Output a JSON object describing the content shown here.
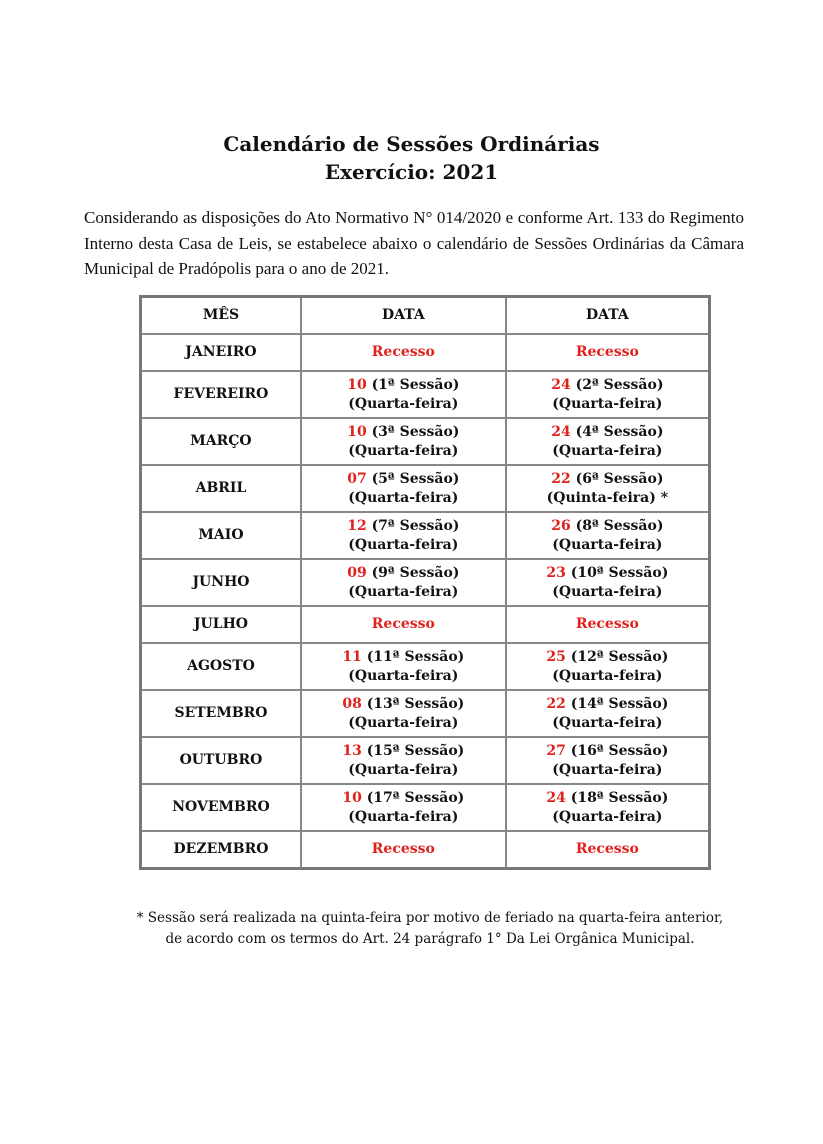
{
  "title": "Calendário de Sessões Ordinárias",
  "subtitle": "Exercício: 2021",
  "intro": "Considerando as disposições do Ato Normativo N° 014/2020 e conforme Art. 133 do Regimento Interno desta Casa de Leis, se estabelece abaixo o calendário de Sessões Ordinárias da Câmara Municipal de Pradópolis para o ano de 2021.",
  "table": {
    "headers": [
      "MÊS",
      "DATA",
      "DATA"
    ],
    "accent_color": "#e0201b",
    "rows": [
      {
        "month": "JANEIRO",
        "recess": "Recesso"
      },
      {
        "month": "FEVEREIRO",
        "dates": [
          {
            "day": "10",
            "session": "(1ª Sessão)",
            "weekday": "(Quarta-feira)"
          },
          {
            "day": "24",
            "session": "(2ª Sessão)",
            "weekday": "(Quarta-feira)"
          }
        ]
      },
      {
        "month": "MARÇO",
        "dates": [
          {
            "day": "10",
            "session": "(3ª Sessão)",
            "weekday": "(Quarta-feira)"
          },
          {
            "day": "24",
            "session": "(4ª Sessão)",
            "weekday": "(Quarta-feira)"
          }
        ]
      },
      {
        "month": "ABRIL",
        "dates": [
          {
            "day": "07",
            "session": "(5ª Sessão)",
            "weekday": "(Quarta-feira)"
          },
          {
            "day": "22",
            "session": "(6ª Sessão)",
            "weekday": "(Quinta-feira) *"
          }
        ]
      },
      {
        "month": "MAIO",
        "dates": [
          {
            "day": "12",
            "session": "(7ª Sessão)",
            "weekday": "(Quarta-feira)"
          },
          {
            "day": "26",
            "session": "(8ª Sessão)",
            "weekday": "(Quarta-feira)"
          }
        ]
      },
      {
        "month": "JUNHO",
        "dates": [
          {
            "day": "09",
            "session": "(9ª Sessão)",
            "weekday": "(Quarta-feira)"
          },
          {
            "day": "23",
            "session": "(10ª Sessão)",
            "weekday": "(Quarta-feira)"
          }
        ]
      },
      {
        "month": "JULHO",
        "recess": "Recesso"
      },
      {
        "month": "AGOSTO",
        "dates": [
          {
            "day": "11",
            "session": "(11ª Sessão)",
            "weekday": "(Quarta-feira)"
          },
          {
            "day": "25",
            "session": "(12ª Sessão)",
            "weekday": "(Quarta-feira)"
          }
        ]
      },
      {
        "month": "SETEMBRO",
        "dates": [
          {
            "day": "08",
            "session": "(13ª Sessão)",
            "weekday": "(Quarta-feira)"
          },
          {
            "day": "22",
            "session": "(14ª Sessão)",
            "weekday": "(Quarta-feira)"
          }
        ]
      },
      {
        "month": "OUTUBRO",
        "dates": [
          {
            "day": "13",
            "session": "(15ª Sessão)",
            "weekday": "(Quarta-feira)"
          },
          {
            "day": "27",
            "session": "(16ª Sessão)",
            "weekday": "(Quarta-feira)"
          }
        ]
      },
      {
        "month": "NOVEMBRO",
        "dates": [
          {
            "day": "10",
            "session": "(17ª Sessão)",
            "weekday": "(Quarta-feira)"
          },
          {
            "day": "24",
            "session": "(18ª Sessão)",
            "weekday": "(Quarta-feira)"
          }
        ]
      },
      {
        "month": "DEZEMBRO",
        "recess": "Recesso"
      }
    ]
  },
  "footnote": {
    "line1": "* Sessão será realizada na quinta-feira por motivo de feriado na quarta-feira anterior,",
    "line2": "de acordo com os termos do Art. 24 parágrafo 1° Da Lei Orgânica Municipal."
  }
}
